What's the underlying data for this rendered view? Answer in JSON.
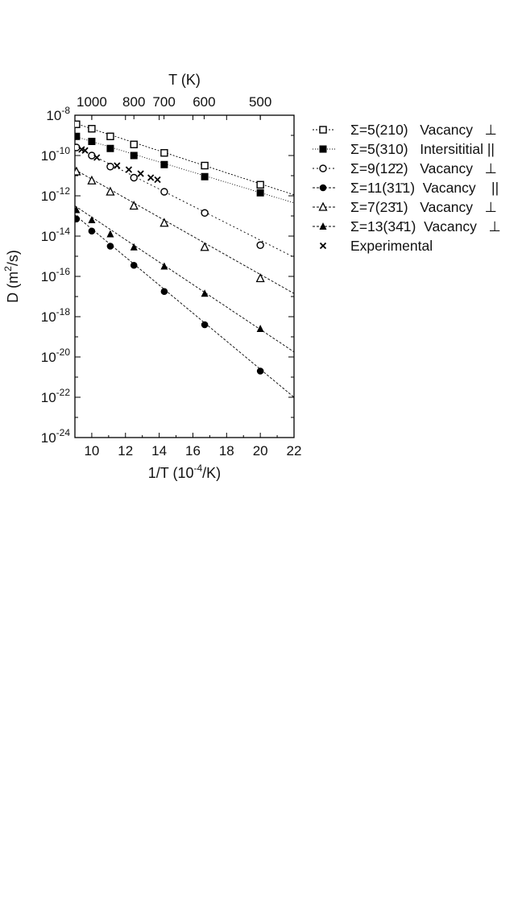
{
  "chart_data": {
    "type": "scatter",
    "xlabel_pre": "1/T (10",
    "xlabel_exp": "-4",
    "xlabel_post": "/K)",
    "ylabel_pre": "D (m",
    "ylabel_exp": "2",
    "ylabel_post": "/s)",
    "top_axis_label": "T (K)",
    "xlim": [
      9,
      22
    ],
    "ylim_log10": [
      -24,
      -8
    ],
    "x_ticks": [
      10,
      12,
      14,
      16,
      18,
      20,
      22
    ],
    "y_ticks_exp": [
      -24,
      -22,
      -20,
      -18,
      -16,
      -14,
      -12,
      -10,
      -8
    ],
    "y_tick_base": "10",
    "top_ticks": [
      {
        "label": "1000",
        "x": 10
      },
      {
        "label": "800",
        "x": 12.5
      },
      {
        "label": "700",
        "x": 14.286
      },
      {
        "label": "600",
        "x": 16.667
      },
      {
        "label": "500",
        "x": 20
      }
    ],
    "series": [
      {
        "name": "Σ=5(210)   Vacancy   ⊥",
        "marker": "square-open",
        "dash": "2,2",
        "x": [
          9.09,
          10,
          11.1,
          12.5,
          14.3,
          16.7,
          20
        ],
        "y_log10": [
          -8.45,
          -8.67,
          -9.05,
          -9.45,
          -9.87,
          -10.5,
          -11.45
        ],
        "fit_log10": [
          [
            9,
            -8.4
          ],
          [
            22,
            -11.95
          ]
        ]
      },
      {
        "name": "Σ=5(310)   Intersititial ||",
        "marker": "square-filled",
        "dash": "1,2",
        "x": [
          9.09,
          10,
          11.1,
          12.5,
          14.3,
          16.7,
          20
        ],
        "y_log10": [
          -9.05,
          -9.3,
          -9.65,
          -10.0,
          -10.45,
          -11.05,
          -11.85
        ],
        "fit_log10": [
          [
            9,
            -9.05
          ],
          [
            22,
            -12.35
          ]
        ]
      },
      {
        "name": "Σ=9(12̄2)   Vacancy   ⊥",
        "marker": "circle-open",
        "dash": "2,3",
        "x": [
          9.09,
          10,
          11.1,
          12.5,
          14.3,
          16.7,
          20
        ],
        "y_log10": [
          -9.6,
          -10.0,
          -10.55,
          -11.1,
          -11.8,
          -12.85,
          -14.45
        ],
        "fit_log10": [
          [
            9,
            -9.55
          ],
          [
            22,
            -15.05
          ]
        ]
      },
      {
        "name": "Σ=11(31̄1)  Vacancy    ||",
        "marker": "circle-filled",
        "dash": "3,2",
        "x": [
          9.09,
          10,
          11.1,
          12.5,
          14.3,
          16.7,
          20
        ],
        "y_log10": [
          -13.15,
          -13.75,
          -14.5,
          -15.45,
          -16.75,
          -18.4,
          -20.7
        ],
        "fit_log10": [
          [
            9,
            -12.95
          ],
          [
            22,
            -22.0
          ]
        ]
      },
      {
        "name": "Σ=7(23̄1)   Vacancy   ⊥",
        "marker": "triangle-open",
        "dash": "3,2",
        "x": [
          9.09,
          10,
          11.1,
          12.5,
          14.3,
          16.7,
          20
        ],
        "y_log10": [
          -10.8,
          -11.25,
          -11.8,
          -12.5,
          -13.35,
          -14.55,
          -16.1
        ],
        "fit_log10": [
          [
            9,
            -10.7
          ],
          [
            22,
            -16.85
          ]
        ]
      },
      {
        "name": "Σ=13(34̄1)  Vacancy   ⊥",
        "marker": "triangle-filled",
        "dash": "3,2",
        "x": [
          9.09,
          10,
          11.1,
          12.5,
          14.3,
          16.7,
          20
        ],
        "y_log10": [
          -12.7,
          -13.2,
          -13.9,
          -14.55,
          -15.5,
          -16.85,
          -18.6
        ],
        "fit_log10": [
          [
            9,
            -12.5
          ],
          [
            22,
            -19.75
          ]
        ]
      },
      {
        "name": "Experimental",
        "marker": "cross",
        "dash": "",
        "x": [
          9.4,
          9.6,
          10.3,
          11.5,
          12.2,
          12.9,
          13.5,
          13.9
        ],
        "y_log10": [
          -9.7,
          -9.75,
          -10.1,
          -10.5,
          -10.7,
          -10.9,
          -11.1,
          -11.2
        ],
        "fit_log10": []
      }
    ]
  }
}
